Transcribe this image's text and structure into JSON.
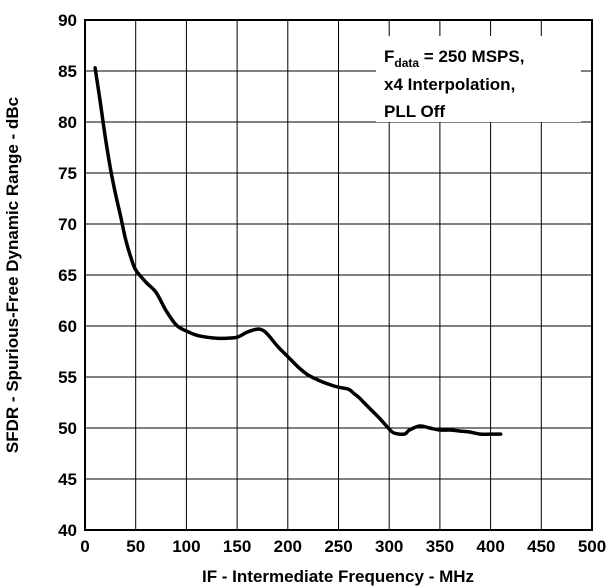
{
  "chart_data": {
    "type": "line",
    "title": "",
    "xlabel": "IF - Intermediate Frequency - MHz",
    "ylabel": "SFDR - Spurious-Free Dynamic Range - dBc",
    "xlim": [
      0,
      500
    ],
    "ylim": [
      40,
      90
    ],
    "xticks": [
      0,
      50,
      100,
      150,
      200,
      250,
      300,
      350,
      400,
      450,
      500
    ],
    "yticks": [
      40,
      45,
      50,
      55,
      60,
      65,
      70,
      75,
      80,
      85,
      90
    ],
    "grid": true,
    "annotation": {
      "line1_prefix": "F",
      "line1_sub": "data",
      "line1_suffix": " = 250 MSPS,",
      "line2": "x4 Interpolation,",
      "line3": "PLL Off"
    },
    "series": [
      {
        "x": [
          10,
          15,
          20,
          25,
          30,
          35,
          40,
          45,
          50,
          60,
          70,
          80,
          90,
          100,
          110,
          120,
          130,
          140,
          150,
          160,
          170,
          175,
          180,
          190,
          200,
          210,
          220,
          230,
          240,
          250,
          260,
          265,
          270,
          280,
          290,
          300,
          305,
          315,
          320,
          330,
          340,
          350,
          360,
          370,
          380,
          390,
          400,
          410
        ],
        "y": [
          85.3,
          82.0,
          78.5,
          75.5,
          73.0,
          70.8,
          68.5,
          66.8,
          65.5,
          64.3,
          63.3,
          61.5,
          60.1,
          59.5,
          59.1,
          58.9,
          58.8,
          58.8,
          58.9,
          59.4,
          59.7,
          59.6,
          59.2,
          58.0,
          57.0,
          56.0,
          55.2,
          54.7,
          54.3,
          54.0,
          53.8,
          53.4,
          53.0,
          52.0,
          51.0,
          49.9,
          49.5,
          49.4,
          49.8,
          50.2,
          50.0,
          49.8,
          49.8,
          49.7,
          49.6,
          49.4,
          49.4,
          49.4
        ]
      }
    ]
  }
}
